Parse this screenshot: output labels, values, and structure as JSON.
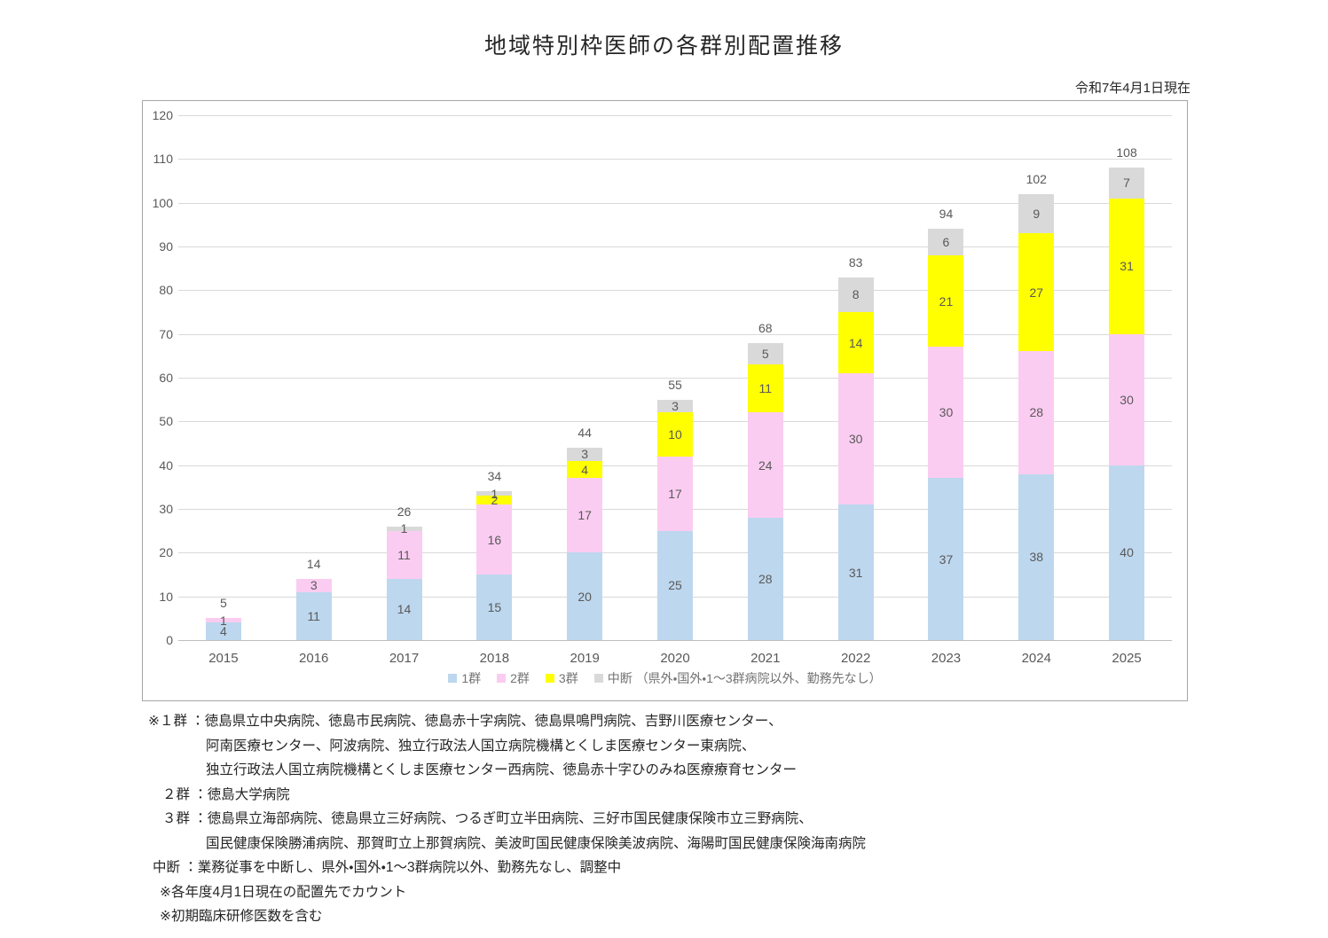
{
  "title": "地域特別枠医師の各群別配置推移",
  "date_label": "令和7年4月1日現在",
  "chart_data": {
    "type": "bar",
    "stacked": true,
    "title": "地域特別枠医師の各群別配置推移",
    "categories": [
      "2015",
      "2016",
      "2017",
      "2018",
      "2019",
      "2020",
      "2021",
      "2022",
      "2023",
      "2024",
      "2025"
    ],
    "series": [
      {
        "name": "1群",
        "color": "#BDD7EE",
        "values": [
          4,
          11,
          14,
          15,
          20,
          25,
          28,
          31,
          37,
          38,
          40
        ]
      },
      {
        "name": "2群",
        "color": "#FBCCF1",
        "values": [
          1,
          3,
          11,
          16,
          17,
          17,
          24,
          30,
          30,
          28,
          30
        ]
      },
      {
        "name": "3群",
        "color": "#FFFF00",
        "values": [
          0,
          0,
          0,
          2,
          4,
          10,
          11,
          14,
          21,
          27,
          31
        ]
      },
      {
        "name": "中断 （県外・国外・1～3群病院以外、勤務先なし）",
        "color": "#D9D9D9",
        "values": [
          0,
          0,
          1,
          1,
          3,
          3,
          5,
          8,
          6,
          9,
          7
        ]
      }
    ],
    "totals": [
      5,
      14,
      26,
      34,
      44,
      55,
      68,
      83,
      94,
      102,
      108
    ],
    "xlabel": "",
    "ylabel": "",
    "ylim": [
      0,
      120
    ],
    "ytick_step": 10,
    "grid": true,
    "legend_position": "bottom"
  },
  "footnotes": [
    {
      "indent": "a",
      "text": "※１群 ：徳島県立中央病院、徳島市民病院、徳島赤十字病院、徳島県鳴門病院、吉野川医療センター、"
    },
    {
      "indent": "c",
      "text": "阿南医療センター、阿波病院、独立行政法人国立病院機構とくしま医療センター東病院、"
    },
    {
      "indent": "c",
      "text": "独立行政法人国立病院機構とくしま医療センター西病院、徳島赤十字ひのみね医療療育センター"
    },
    {
      "indent": "b",
      "text": "２群 ：徳島大学病院"
    },
    {
      "indent": "b",
      "text": "３群 ：徳島県立海部病院、徳島県立三好病院、つるぎ町立半田病院、三好市国民健康保険市立三野病院、"
    },
    {
      "indent": "c",
      "text": "国民健康保険勝浦病院、那賀町立上那賀病院、美波町国民健康保険美波病院、海陽町国民健康保険海南病院"
    },
    {
      "indent": "d",
      "text": "中断 ：業務従事を中断し、県外・国外・1〜3群病院以外、勤務先なし、調整中"
    },
    {
      "indent": "e",
      "text": "※各年度4月1日現在の配置先でカウント"
    },
    {
      "indent": "e",
      "text": "※初期臨床研修医数を含む"
    }
  ]
}
